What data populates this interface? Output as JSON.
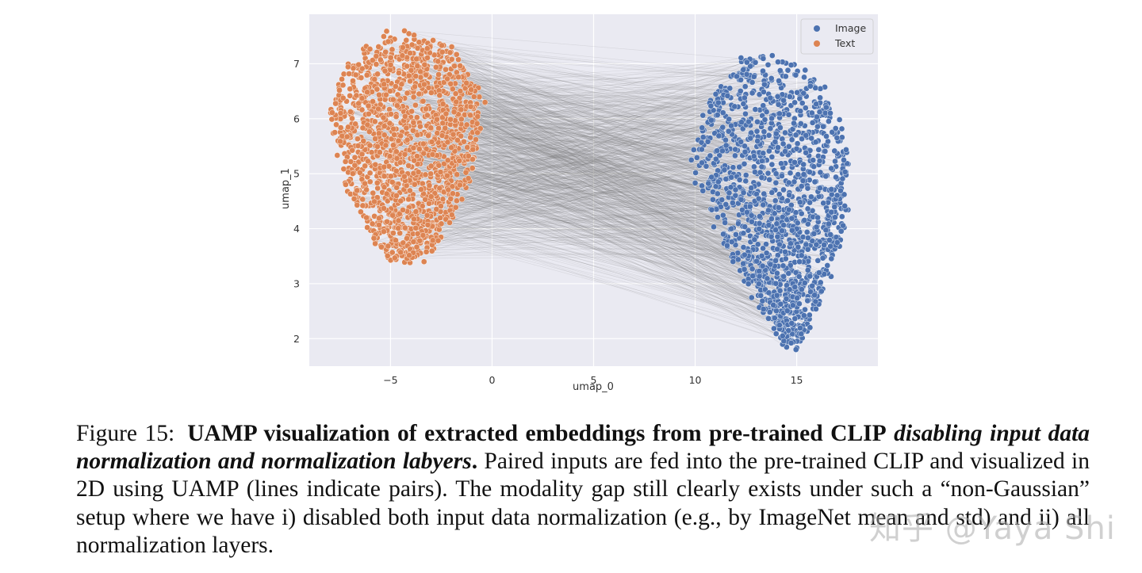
{
  "chart_data": {
    "type": "scatter",
    "title": "",
    "xlabel": "umap_0",
    "ylabel": "umap_1",
    "xlim": [
      -9,
      19
    ],
    "ylim": [
      1.5,
      7.9
    ],
    "xticks": [
      -5,
      0,
      5,
      10,
      15
    ],
    "xtick_labels": [
      "−5",
      "0",
      "5",
      "10",
      "15"
    ],
    "yticks": [
      2,
      3,
      4,
      5,
      6,
      7
    ],
    "ytick_labels": [
      "2",
      "3",
      "4",
      "5",
      "6",
      "7"
    ],
    "grid": true,
    "legend_position": "top-right",
    "pairs_lines": true,
    "series": [
      {
        "name": "Image",
        "color": "#4c72b0",
        "cluster_center": [
          14.2,
          4.7
        ],
        "x_range": [
          9.2,
          17.6
        ],
        "y_range": [
          1.8,
          7.2
        ]
      },
      {
        "name": "Text",
        "color": "#dd8452",
        "cluster_center": [
          -4.0,
          5.6
        ],
        "x_range": [
          -8.3,
          -0.1
        ],
        "y_range": [
          3.3,
          7.6
        ]
      }
    ]
  },
  "caption": {
    "label": "Figure 15:",
    "bold": "UAMP visualization of extracted embeddings from pre-trained CLIP",
    "bold_italic": "disabling input data normalization and normalization labyers",
    "period": ".",
    "body": "Paired inputs are fed into the pre-trained CLIP and visualized in 2D using UAMP (lines indicate pairs). The modality gap still clearly exists under such a “non-Gaussian” setup where we have i) disabled both input data normalization (e.g., by ImageNet mean and std) and ii) all normalization layers."
  },
  "watermark": "知乎 @Yaya Shi"
}
